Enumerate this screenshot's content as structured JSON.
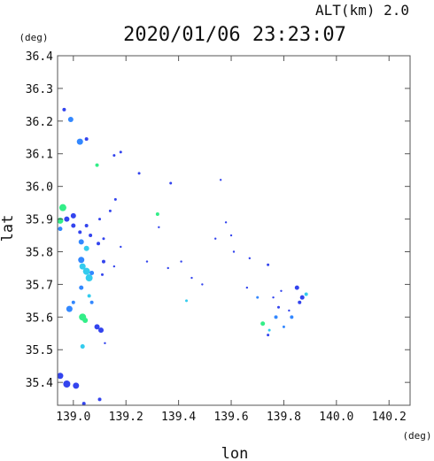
{
  "header": {
    "alt_text": "ALT(km)  2.0",
    "timestamp": "2020/01/06 23:23:07"
  },
  "chart_data": {
    "type": "scatter",
    "title": "2020/01/06 23:23:07",
    "xlabel": "lon",
    "ylabel": "lat",
    "x_unit": "(deg)",
    "y_unit": "(deg)",
    "xlim": [
      138.94,
      140.28
    ],
    "ylim": [
      35.33,
      36.4
    ],
    "x_ticks": [
      "139.0",
      "139.2",
      "139.4",
      "139.6",
      "139.8",
      "140.0",
      "140.2"
    ],
    "x_tick_values": [
      139.0,
      139.2,
      139.4,
      139.6,
      139.8,
      140.0,
      140.2
    ],
    "y_ticks": [
      "35.4",
      "35.5",
      "35.6",
      "35.7",
      "35.8",
      "35.9",
      "36.0",
      "36.1",
      "36.2",
      "36.3",
      "36.4"
    ],
    "y_tick_values": [
      35.4,
      35.5,
      35.6,
      35.7,
      35.8,
      35.9,
      36.0,
      36.1,
      36.2,
      36.3,
      36.4
    ],
    "grid": false,
    "colors": {
      "strong": "#3344ee",
      "mid": "#3388ff",
      "light": "#33ccee",
      "green": "#33ee88",
      "frame": "#555555"
    },
    "points": [
      {
        "lon": 138.99,
        "lat": 36.205,
        "c": "mid",
        "s": 3
      },
      {
        "lon": 138.965,
        "lat": 36.235,
        "c": "strong",
        "s": 2
      },
      {
        "lon": 139.025,
        "lat": 36.137,
        "c": "mid",
        "s": 3.5
      },
      {
        "lon": 139.05,
        "lat": 36.145,
        "c": "strong",
        "s": 2
      },
      {
        "lon": 139.09,
        "lat": 36.065,
        "c": "green",
        "s": 2
      },
      {
        "lon": 139.155,
        "lat": 36.095,
        "c": "strong",
        "s": 1.5
      },
      {
        "lon": 139.18,
        "lat": 36.105,
        "c": "strong",
        "s": 1.5
      },
      {
        "lon": 139.25,
        "lat": 36.04,
        "c": "strong",
        "s": 1.5
      },
      {
        "lon": 139.37,
        "lat": 36.01,
        "c": "strong",
        "s": 1.5
      },
      {
        "lon": 139.56,
        "lat": 36.02,
        "c": "strong",
        "s": 1.2
      },
      {
        "lon": 138.96,
        "lat": 35.935,
        "c": "green",
        "s": 4
      },
      {
        "lon": 138.95,
        "lat": 35.895,
        "c": "green",
        "s": 3.5
      },
      {
        "lon": 138.975,
        "lat": 35.9,
        "c": "strong",
        "s": 3
      },
      {
        "lon": 139.0,
        "lat": 35.91,
        "c": "strong",
        "s": 3
      },
      {
        "lon": 139.0,
        "lat": 35.88,
        "c": "strong",
        "s": 2.5
      },
      {
        "lon": 138.95,
        "lat": 35.87,
        "c": "mid",
        "s": 2.5
      },
      {
        "lon": 139.025,
        "lat": 35.86,
        "c": "strong",
        "s": 2
      },
      {
        "lon": 139.05,
        "lat": 35.88,
        "c": "strong",
        "s": 2
      },
      {
        "lon": 139.1,
        "lat": 35.9,
        "c": "strong",
        "s": 1.5
      },
      {
        "lon": 139.16,
        "lat": 35.96,
        "c": "strong",
        "s": 1.5
      },
      {
        "lon": 139.14,
        "lat": 35.925,
        "c": "strong",
        "s": 1.5
      },
      {
        "lon": 139.32,
        "lat": 35.915,
        "c": "green",
        "s": 2
      },
      {
        "lon": 139.325,
        "lat": 35.875,
        "c": "strong",
        "s": 1.2
      },
      {
        "lon": 139.065,
        "lat": 35.85,
        "c": "strong",
        "s": 2
      },
      {
        "lon": 139.03,
        "lat": 35.83,
        "c": "mid",
        "s": 3
      },
      {
        "lon": 139.05,
        "lat": 35.81,
        "c": "light",
        "s": 3
      },
      {
        "lon": 139.095,
        "lat": 35.825,
        "c": "strong",
        "s": 2
      },
      {
        "lon": 139.115,
        "lat": 35.84,
        "c": "strong",
        "s": 1.5
      },
      {
        "lon": 139.03,
        "lat": 35.775,
        "c": "mid",
        "s": 3.5
      },
      {
        "lon": 139.035,
        "lat": 35.755,
        "c": "light",
        "s": 3.5
      },
      {
        "lon": 139.05,
        "lat": 35.74,
        "c": "light",
        "s": 4
      },
      {
        "lon": 139.06,
        "lat": 35.72,
        "c": "light",
        "s": 4
      },
      {
        "lon": 139.07,
        "lat": 35.735,
        "c": "mid",
        "s": 2.5
      },
      {
        "lon": 139.115,
        "lat": 35.77,
        "c": "strong",
        "s": 2
      },
      {
        "lon": 139.11,
        "lat": 35.73,
        "c": "strong",
        "s": 1.5
      },
      {
        "lon": 139.155,
        "lat": 35.755,
        "c": "strong",
        "s": 1.2
      },
      {
        "lon": 139.03,
        "lat": 35.69,
        "c": "mid",
        "s": 2.5
      },
      {
        "lon": 139.06,
        "lat": 35.665,
        "c": "light",
        "s": 2
      },
      {
        "lon": 139.07,
        "lat": 35.645,
        "c": "mid",
        "s": 2
      },
      {
        "lon": 138.985,
        "lat": 35.625,
        "c": "mid",
        "s": 3.5
      },
      {
        "lon": 139.0,
        "lat": 35.645,
        "c": "mid",
        "s": 2
      },
      {
        "lon": 139.035,
        "lat": 35.6,
        "c": "green",
        "s": 4
      },
      {
        "lon": 139.045,
        "lat": 35.59,
        "c": "green",
        "s": 3
      },
      {
        "lon": 139.09,
        "lat": 35.57,
        "c": "strong",
        "s": 3
      },
      {
        "lon": 139.105,
        "lat": 35.56,
        "c": "strong",
        "s": 3
      },
      {
        "lon": 139.12,
        "lat": 35.52,
        "c": "strong",
        "s": 1.2
      },
      {
        "lon": 139.035,
        "lat": 35.51,
        "c": "light",
        "s": 2.5
      },
      {
        "lon": 138.95,
        "lat": 35.42,
        "c": "strong",
        "s": 3.5
      },
      {
        "lon": 138.975,
        "lat": 35.395,
        "c": "strong",
        "s": 4
      },
      {
        "lon": 139.01,
        "lat": 35.39,
        "c": "strong",
        "s": 3.5
      },
      {
        "lon": 139.04,
        "lat": 35.335,
        "c": "strong",
        "s": 2
      },
      {
        "lon": 139.1,
        "lat": 35.348,
        "c": "strong",
        "s": 2
      },
      {
        "lon": 139.18,
        "lat": 35.815,
        "c": "strong",
        "s": 1.2
      },
      {
        "lon": 139.28,
        "lat": 35.77,
        "c": "strong",
        "s": 1.2
      },
      {
        "lon": 139.36,
        "lat": 35.75,
        "c": "strong",
        "s": 1.2
      },
      {
        "lon": 139.41,
        "lat": 35.77,
        "c": "strong",
        "s": 1.2
      },
      {
        "lon": 139.45,
        "lat": 35.72,
        "c": "strong",
        "s": 1.2
      },
      {
        "lon": 139.49,
        "lat": 35.7,
        "c": "strong",
        "s": 1.2
      },
      {
        "lon": 139.43,
        "lat": 35.65,
        "c": "light",
        "s": 1.5
      },
      {
        "lon": 139.54,
        "lat": 35.84,
        "c": "strong",
        "s": 1.2
      },
      {
        "lon": 139.58,
        "lat": 35.89,
        "c": "strong",
        "s": 1.2
      },
      {
        "lon": 139.6,
        "lat": 35.85,
        "c": "strong",
        "s": 1.2
      },
      {
        "lon": 139.61,
        "lat": 35.8,
        "c": "strong",
        "s": 1.2
      },
      {
        "lon": 139.67,
        "lat": 35.78,
        "c": "strong",
        "s": 1.2
      },
      {
        "lon": 139.74,
        "lat": 35.76,
        "c": "strong",
        "s": 1.5
      },
      {
        "lon": 139.66,
        "lat": 35.69,
        "c": "strong",
        "s": 1.2
      },
      {
        "lon": 139.7,
        "lat": 35.66,
        "c": "mid",
        "s": 1.5
      },
      {
        "lon": 139.72,
        "lat": 35.58,
        "c": "green",
        "s": 2.5
      },
      {
        "lon": 139.745,
        "lat": 35.56,
        "c": "light",
        "s": 1.5
      },
      {
        "lon": 139.74,
        "lat": 35.545,
        "c": "strong",
        "s": 1.5
      },
      {
        "lon": 139.77,
        "lat": 35.6,
        "c": "mid",
        "s": 2
      },
      {
        "lon": 139.78,
        "lat": 35.63,
        "c": "strong",
        "s": 1.5
      },
      {
        "lon": 139.8,
        "lat": 35.57,
        "c": "mid",
        "s": 1.5
      },
      {
        "lon": 139.83,
        "lat": 35.6,
        "c": "mid",
        "s": 2
      },
      {
        "lon": 139.85,
        "lat": 35.69,
        "c": "strong",
        "s": 2.5
      },
      {
        "lon": 139.87,
        "lat": 35.66,
        "c": "strong",
        "s": 2.5
      },
      {
        "lon": 139.885,
        "lat": 35.67,
        "c": "light",
        "s": 2
      },
      {
        "lon": 139.86,
        "lat": 35.645,
        "c": "strong",
        "s": 2
      },
      {
        "lon": 139.79,
        "lat": 35.68,
        "c": "strong",
        "s": 1.2
      },
      {
        "lon": 139.82,
        "lat": 35.62,
        "c": "strong",
        "s": 1.2
      },
      {
        "lon": 139.76,
        "lat": 35.66,
        "c": "strong",
        "s": 1.2
      }
    ]
  }
}
